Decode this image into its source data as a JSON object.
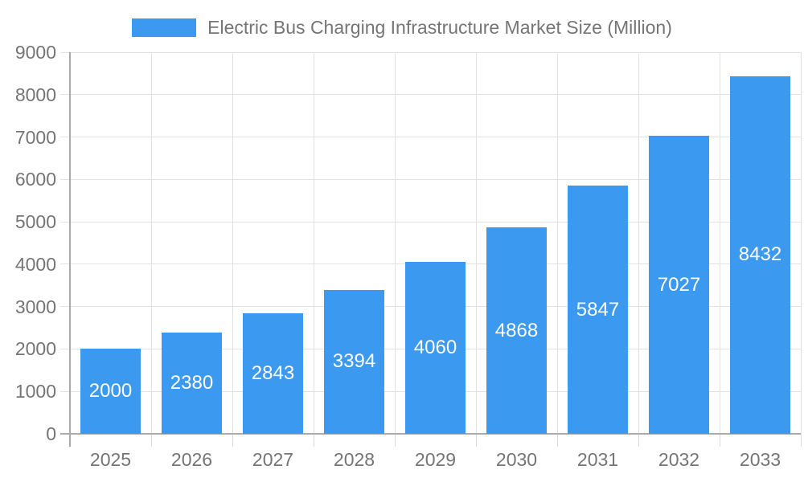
{
  "legend": {
    "label": "Electric Bus Charging Infrastructure Market Size (Million)"
  },
  "chart_data": {
    "type": "bar",
    "title": "Electric Bus Charging Infrastructure Market Size (Million)",
    "categories": [
      "2025",
      "2026",
      "2027",
      "2028",
      "2029",
      "2030",
      "2031",
      "2032",
      "2033"
    ],
    "values": [
      2000,
      2380,
      2843,
      3394,
      4060,
      4868,
      5847,
      7027,
      8432
    ],
    "xlabel": "",
    "ylabel": "",
    "ylim": [
      0,
      9000
    ],
    "ytick_interval": 1000,
    "ytick_labels": [
      "0",
      "1000",
      "2000",
      "3000",
      "4000",
      "5000",
      "6000",
      "7000",
      "8000",
      "9000"
    ],
    "grid": true,
    "legend_position": "top-center",
    "value_label_position": "inside-center",
    "colors": {
      "bar": "#3B99F0",
      "value_label": "#FFFFFF",
      "axis_text": "#757575",
      "gridline": "#E2E2E2",
      "axis_line": "#AAAAAA",
      "tick": "#D9D9D9",
      "background": "#FFFFFF"
    }
  }
}
